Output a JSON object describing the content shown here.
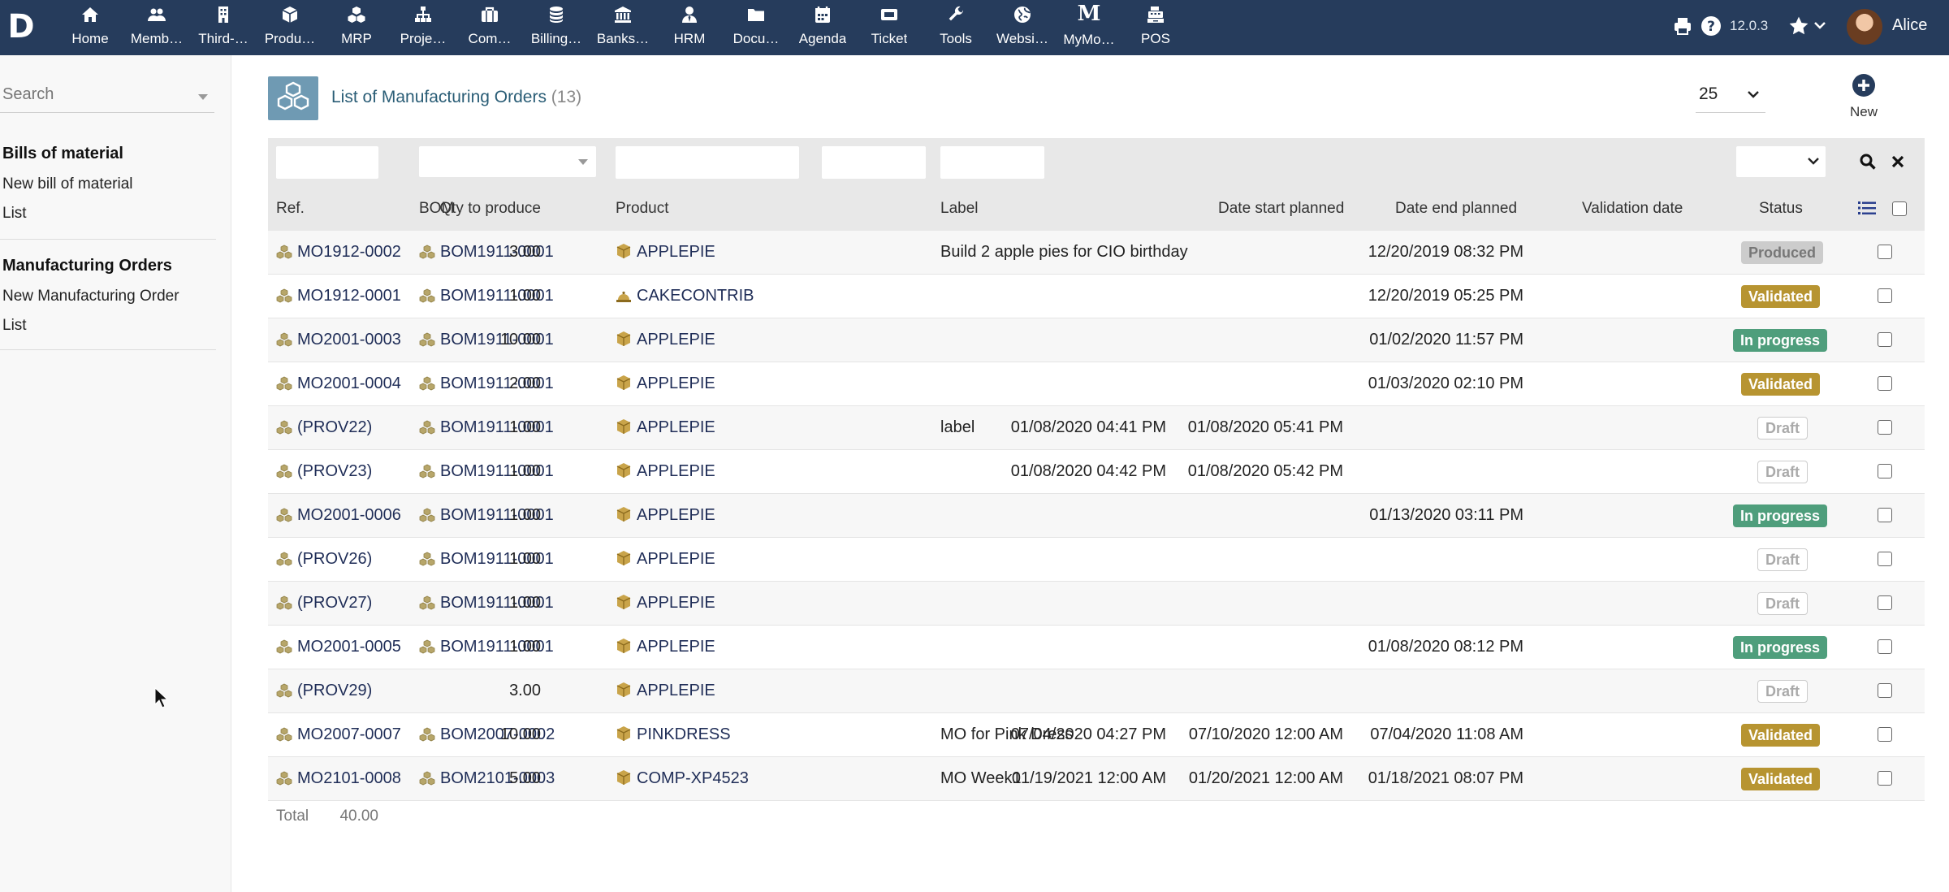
{
  "app": {
    "logo": "D",
    "version": "12.0.3",
    "user": "Alice"
  },
  "topmenu": [
    {
      "label": "Home",
      "icon": "home-icon"
    },
    {
      "label": "Memb…",
      "icon": "members-icon"
    },
    {
      "label": "Third-…",
      "icon": "building-icon"
    },
    {
      "label": "Produ…",
      "icon": "product-cube-icon"
    },
    {
      "label": "MRP",
      "icon": "cubes-icon"
    },
    {
      "label": "Proje…",
      "icon": "project-tree-icon"
    },
    {
      "label": "Com…",
      "icon": "briefcase-icon"
    },
    {
      "label": "Billing…",
      "icon": "coins-icon"
    },
    {
      "label": "Banks…",
      "icon": "bank-icon"
    },
    {
      "label": "HRM",
      "icon": "user-tie-icon"
    },
    {
      "label": "Docu…",
      "icon": "folder-icon"
    },
    {
      "label": "Agenda",
      "icon": "calendar-icon"
    },
    {
      "label": "Ticket",
      "icon": "ticket-icon"
    },
    {
      "label": "Tools",
      "icon": "wrench-icon"
    },
    {
      "label": "Websi…",
      "icon": "globe-icon"
    },
    {
      "label": "MyMo…",
      "icon": "mymodule-m-icon",
      "glyph": "M"
    },
    {
      "label": "POS",
      "icon": "cash-register-icon"
    }
  ],
  "sidebar": {
    "search_placeholder": "Search",
    "sections": [
      {
        "title": "Bills of material",
        "links": [
          "New bill of material",
          "List"
        ]
      },
      {
        "title": "Manufacturing Orders",
        "links": [
          "New Manufacturing Order",
          "List"
        ]
      }
    ]
  },
  "page": {
    "title": "List of Manufacturing Orders",
    "count": "(13)",
    "page_size": "25",
    "new_label": "New"
  },
  "table": {
    "columns": {
      "ref": "Ref.",
      "bom": "BOM",
      "product": "Product",
      "qty": "Qty to produce",
      "label": "Label",
      "date_start": "Date start planned",
      "date_end": "Date end planned",
      "validation": "Validation date",
      "status": "Status"
    },
    "rows": [
      {
        "ref": "MO1912-0002",
        "bom": "BOM1911-0001",
        "product": "APPLEPIE",
        "product_icon": "cube-icon",
        "qty": "3.00",
        "label": "Build 2 apple pies for CIO birthday",
        "date_start": "",
        "date_end": "",
        "validation": "12/20/2019 08:32 PM",
        "status": "Produced",
        "status_kind": "produced"
      },
      {
        "ref": "MO1912-0001",
        "bom": "BOM1911-0001",
        "product": "CAKECONTRIB",
        "product_icon": "service-icon",
        "qty": "1.00",
        "label": "",
        "date_start": "",
        "date_end": "",
        "validation": "12/20/2019 05:25 PM",
        "status": "Validated",
        "status_kind": "validated"
      },
      {
        "ref": "MO2001-0003",
        "bom": "BOM1911-0001",
        "product": "APPLEPIE",
        "product_icon": "cube-icon",
        "qty": "10.00",
        "label": "",
        "date_start": "",
        "date_end": "",
        "validation": "01/02/2020 11:57 PM",
        "status": "In progress",
        "status_kind": "inprogress"
      },
      {
        "ref": "MO2001-0004",
        "bom": "BOM1911-0001",
        "product": "APPLEPIE",
        "product_icon": "cube-icon",
        "qty": "2.00",
        "label": "",
        "date_start": "",
        "date_end": "",
        "validation": "01/03/2020 02:10 PM",
        "status": "Validated",
        "status_kind": "validated"
      },
      {
        "ref": "(PROV22)",
        "bom": "BOM1911-0001",
        "product": "APPLEPIE",
        "product_icon": "cube-icon",
        "qty": "1.00",
        "label": "label",
        "date_start": "01/08/2020 04:41 PM",
        "date_end": "01/08/2020 05:41 PM",
        "validation": "",
        "status": "Draft",
        "status_kind": "draft"
      },
      {
        "ref": "(PROV23)",
        "bom": "BOM1911-0001",
        "product": "APPLEPIE",
        "product_icon": "cube-icon",
        "qty": "1.00",
        "label": "",
        "date_start": "01/08/2020 04:42 PM",
        "date_end": "01/08/2020 05:42 PM",
        "validation": "",
        "status": "Draft",
        "status_kind": "draft"
      },
      {
        "ref": "MO2001-0006",
        "bom": "BOM1911-0001",
        "product": "APPLEPIE",
        "product_icon": "cube-icon",
        "qty": "1.00",
        "label": "",
        "date_start": "",
        "date_end": "",
        "validation": "01/13/2020 03:11 PM",
        "status": "In progress",
        "status_kind": "inprogress"
      },
      {
        "ref": "(PROV26)",
        "bom": "BOM1911-0001",
        "product": "APPLEPIE",
        "product_icon": "cube-icon",
        "qty": "1.00",
        "label": "",
        "date_start": "",
        "date_end": "",
        "validation": "",
        "status": "Draft",
        "status_kind": "draft"
      },
      {
        "ref": "(PROV27)",
        "bom": "BOM1911-0001",
        "product": "APPLEPIE",
        "product_icon": "cube-icon",
        "qty": "1.00",
        "label": "",
        "date_start": "",
        "date_end": "",
        "validation": "",
        "status": "Draft",
        "status_kind": "draft"
      },
      {
        "ref": "MO2001-0005",
        "bom": "BOM1911-0001",
        "product": "APPLEPIE",
        "product_icon": "cube-icon",
        "qty": "1.00",
        "label": "",
        "date_start": "",
        "date_end": "",
        "validation": "01/08/2020 08:12 PM",
        "status": "In progress",
        "status_kind": "inprogress"
      },
      {
        "ref": "(PROV29)",
        "bom": "",
        "product": "APPLEPIE",
        "product_icon": "cube-icon",
        "qty": "3.00",
        "label": "",
        "date_start": "",
        "date_end": "",
        "validation": "",
        "status": "Draft",
        "status_kind": "draft"
      },
      {
        "ref": "MO2007-0007",
        "bom": "BOM2007-0002",
        "product": "PINKDRESS",
        "product_icon": "cube-icon",
        "qty": "10.00",
        "label": "MO for Pink Dress",
        "date_start": "07/04/2020 04:27 PM",
        "date_end": "07/10/2020 12:00 AM",
        "validation": "07/04/2020 11:08 AM",
        "status": "Validated",
        "status_kind": "validated"
      },
      {
        "ref": "MO2101-0008",
        "bom": "BOM2101-0003",
        "product": "COMP-XP4523",
        "product_icon": "cube-icon",
        "qty": "5.00",
        "label": "MO Week1",
        "date_start": "01/19/2021 12:00 AM",
        "date_end": "01/20/2021 12:00 AM",
        "validation": "01/18/2021 08:07 PM",
        "status": "Validated",
        "status_kind": "validated"
      }
    ],
    "total_label": "Total",
    "total_qty": "40.00"
  },
  "colors": {
    "topbar": "#263c5c",
    "title": "#2a5d76",
    "link": "#1f2d57",
    "validated": "#b79431",
    "inprogress": "#4f9e7c",
    "produced": "#cccccc"
  }
}
